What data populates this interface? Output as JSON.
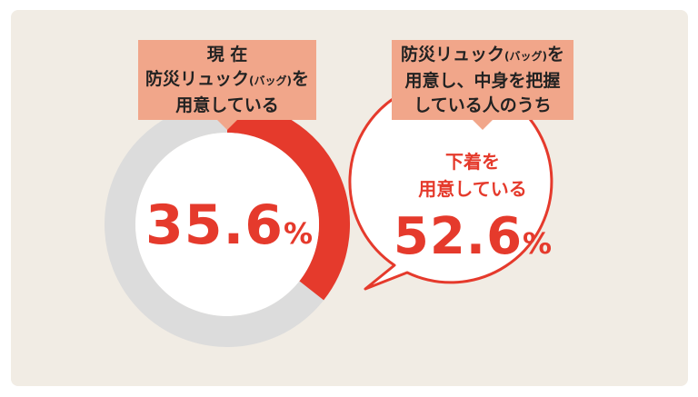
{
  "chart_data": {
    "type": "pie",
    "value": 35.6,
    "remainder": 64.4,
    "value_text": "35.6",
    "unit": "%",
    "colors": {
      "value": "#e53a2c",
      "remainder": "#dcdcdc"
    }
  },
  "left_label": {
    "line1": "現 在",
    "line2_main": "防災リュック",
    "line2_small": "(バッグ)",
    "line2_tail": "を",
    "line3": "用意している"
  },
  "right_label": {
    "line1_main": "防災リュック",
    "line1_small": "(バッグ)",
    "line1_tail": "を",
    "line2": "用意し、中身を把握",
    "line3": "している人のうち"
  },
  "bubble": {
    "line1": "下着を",
    "line2": "用意している",
    "value_text": "52.6",
    "unit": "%"
  },
  "colors": {
    "background": "#f1ece4",
    "accent": "#e53a2c",
    "label_bg": "#f1a68a",
    "ring_gray": "#dcdcdc"
  }
}
